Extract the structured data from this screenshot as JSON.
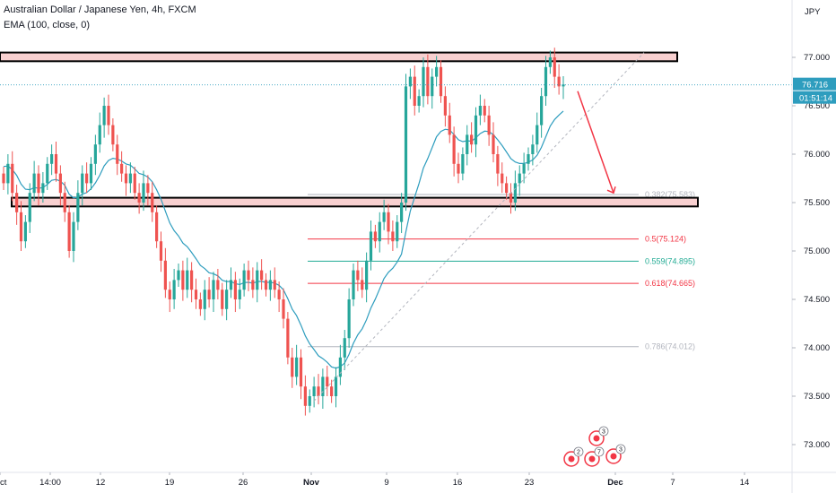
{
  "header": {
    "symbol_line": "Australian Dollar / Japanese Yen, 4h, FXCM",
    "indicator_line": "EMA (100, close, 0)",
    "currency_label": "JPY"
  },
  "price_axis": {
    "ticks": [
      "77.000",
      "76.500",
      "76.000",
      "75.500",
      "75.000",
      "74.500",
      "74.000",
      "73.500",
      "73.000"
    ],
    "current_price": "76.716",
    "countdown": "01:51:14"
  },
  "time_axis": {
    "ticks": [
      "Oct",
      "14:00",
      "12",
      "19",
      "26",
      "Nov",
      "9",
      "16",
      "23",
      "Dec",
      "7",
      "14"
    ]
  },
  "fib_levels": [
    {
      "label": "0.382(75.583)",
      "price": 75.583,
      "color": "#b2b5be"
    },
    {
      "label": "0.5(75.124)",
      "price": 75.124,
      "color": "#f23645"
    },
    {
      "label": "0.559(74.895)",
      "price": 74.895,
      "color": "#22ab94"
    },
    {
      "label": "0.618(74.665)",
      "price": 74.665,
      "color": "#f23645"
    },
    {
      "label": "0.786(74.012)",
      "price": 74.012,
      "color": "#b2b5be"
    }
  ],
  "zones": [
    {
      "name": "resistance",
      "top": 77.05,
      "bottom": 76.96
    },
    {
      "name": "support",
      "top": 75.55,
      "bottom": 75.46
    }
  ],
  "events": [
    {
      "name": "event-1",
      "count": "3"
    },
    {
      "name": "event-2",
      "count": "2"
    },
    {
      "name": "event-3",
      "count": "7"
    },
    {
      "name": "event-4",
      "count": "3"
    }
  ],
  "colors": {
    "up": "#26a69a",
    "down": "#ef5350",
    "ema": "#2e9dbe",
    "zone_fill": "#f8d0d0",
    "zone_border": "#000000",
    "arrow": "#f23645",
    "trendline": "#b2b5be",
    "current_price_bg": "#2e9dbe"
  },
  "chart_data": {
    "type": "candlestick",
    "title": "Australian Dollar / Japanese Yen, 4h, FXCM",
    "ylim": [
      72.85,
      77.45
    ],
    "series": [
      {
        "name": "AUDJPY",
        "points": [
          [
            75.8,
            75.7
          ],
          [
            75.7,
            75.9
          ],
          [
            75.9,
            75.6
          ],
          [
            75.6,
            75.4
          ],
          [
            75.4,
            75.1
          ],
          [
            75.1,
            75.3
          ],
          [
            75.3,
            75.6
          ],
          [
            75.6,
            75.8
          ],
          [
            75.8,
            75.6
          ],
          [
            75.6,
            75.7
          ],
          [
            75.7,
            75.9
          ],
          [
            75.9,
            76.0
          ],
          [
            76.0,
            75.8
          ],
          [
            75.8,
            75.6
          ],
          [
            75.6,
            75.4
          ],
          [
            75.4,
            75.0
          ],
          [
            75.0,
            75.3
          ],
          [
            75.3,
            75.6
          ],
          [
            75.6,
            75.8
          ],
          [
            75.8,
            75.7
          ],
          [
            75.7,
            75.9
          ],
          [
            75.9,
            76.1
          ],
          [
            76.1,
            76.3
          ],
          [
            76.3,
            76.5
          ],
          [
            76.5,
            76.3
          ],
          [
            76.3,
            76.1
          ],
          [
            76.1,
            75.9
          ],
          [
            75.9,
            75.8
          ],
          [
            75.8,
            75.7
          ],
          [
            75.7,
            75.8
          ],
          [
            75.8,
            75.6
          ],
          [
            75.6,
            75.5
          ],
          [
            75.5,
            75.7
          ],
          [
            75.7,
            75.6
          ],
          [
            75.6,
            75.4
          ],
          [
            75.4,
            75.1
          ],
          [
            75.1,
            74.9
          ],
          [
            74.9,
            74.6
          ],
          [
            74.6,
            74.5
          ],
          [
            74.5,
            74.7
          ],
          [
            74.7,
            74.8
          ],
          [
            74.8,
            74.6
          ],
          [
            74.6,
            74.8
          ],
          [
            74.8,
            74.6
          ],
          [
            74.6,
            74.5
          ],
          [
            74.5,
            74.4
          ],
          [
            74.4,
            74.6
          ],
          [
            74.6,
            74.5
          ],
          [
            74.5,
            74.7
          ],
          [
            74.7,
            74.6
          ],
          [
            74.6,
            74.4
          ],
          [
            74.4,
            74.6
          ],
          [
            74.6,
            74.7
          ],
          [
            74.7,
            74.5
          ],
          [
            74.5,
            74.6
          ],
          [
            74.6,
            74.8
          ],
          [
            74.8,
            74.7
          ],
          [
            74.7,
            74.6
          ],
          [
            74.6,
            74.8
          ],
          [
            74.8,
            74.7
          ],
          [
            74.7,
            74.6
          ],
          [
            74.6,
            74.7
          ],
          [
            74.7,
            74.6
          ],
          [
            74.6,
            74.5
          ],
          [
            74.5,
            74.3
          ],
          [
            74.3,
            73.9
          ],
          [
            73.9,
            73.7
          ],
          [
            73.7,
            73.9
          ],
          [
            73.9,
            73.6
          ],
          [
            73.6,
            73.4
          ],
          [
            73.4,
            73.5
          ],
          [
            73.5,
            73.6
          ],
          [
            73.6,
            73.5
          ],
          [
            73.5,
            73.7
          ],
          [
            73.7,
            73.6
          ],
          [
            73.6,
            73.5
          ],
          [
            73.5,
            73.7
          ],
          [
            73.7,
            73.9
          ],
          [
            73.9,
            74.1
          ],
          [
            74.1,
            74.5
          ],
          [
            74.5,
            74.8
          ],
          [
            74.8,
            74.7
          ],
          [
            74.7,
            74.6
          ],
          [
            74.6,
            74.9
          ],
          [
            74.9,
            75.2
          ],
          [
            75.2,
            75.1
          ],
          [
            75.1,
            75.3
          ],
          [
            75.3,
            75.4
          ],
          [
            75.4,
            75.2
          ],
          [
            75.2,
            75.1
          ],
          [
            75.1,
            75.3
          ],
          [
            75.3,
            75.5
          ],
          [
            75.5,
            76.7
          ],
          [
            76.7,
            76.8
          ],
          [
            76.8,
            76.5
          ],
          [
            76.5,
            76.6
          ],
          [
            76.6,
            76.9
          ],
          [
            76.9,
            76.6
          ],
          [
            76.6,
            76.8
          ],
          [
            76.8,
            76.9
          ],
          [
            76.9,
            76.6
          ],
          [
            76.6,
            76.4
          ],
          [
            76.4,
            76.2
          ],
          [
            76.2,
            75.9
          ],
          [
            75.9,
            75.8
          ],
          [
            75.8,
            76.0
          ],
          [
            76.0,
            76.2
          ],
          [
            76.2,
            76.1
          ],
          [
            76.1,
            76.4
          ],
          [
            76.4,
            76.5
          ],
          [
            76.5,
            76.4
          ],
          [
            76.4,
            76.2
          ],
          [
            76.2,
            76.0
          ],
          [
            76.0,
            75.8
          ],
          [
            75.8,
            75.7
          ],
          [
            75.7,
            75.6
          ],
          [
            75.6,
            75.5
          ],
          [
            75.5,
            75.7
          ],
          [
            75.7,
            75.8
          ],
          [
            75.8,
            75.9
          ],
          [
            75.9,
            76.0
          ],
          [
            76.0,
            76.1
          ],
          [
            76.1,
            76.3
          ],
          [
            76.3,
            76.6
          ],
          [
            76.6,
            76.9
          ],
          [
            76.9,
            77.0
          ],
          [
            77.0,
            76.8
          ],
          [
            76.8,
            76.7
          ],
          [
            76.7,
            76.72
          ]
        ]
      }
    ],
    "ema_label": "EMA (100, close, 0)"
  }
}
